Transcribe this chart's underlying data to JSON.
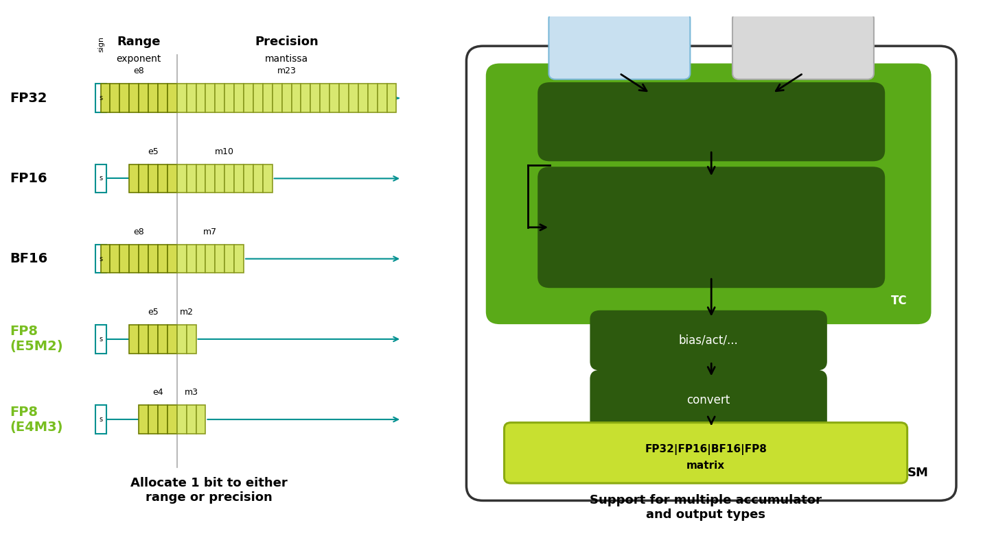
{
  "left_title": "Allocate 1 bit to either\nrange or precision",
  "right_title": "Support for multiple accumulator\nand output types",
  "formats": [
    {
      "name": "FP32",
      "color": "black",
      "sign": 1,
      "exponent": 8,
      "mantissa": 23,
      "exponent_label": "e8",
      "mantissa_label": "m23"
    },
    {
      "name": "FP16",
      "color": "black",
      "sign": 1,
      "exponent": 5,
      "mantissa": 10,
      "exponent_label": "e5",
      "mantissa_label": "m10"
    },
    {
      "name": "BF16",
      "color": "black",
      "sign": 1,
      "exponent": 8,
      "mantissa": 7,
      "exponent_label": "e8",
      "mantissa_label": "m7"
    },
    {
      "name": "FP8\n(E5M2)",
      "color": "#78be20",
      "sign": 1,
      "exponent": 5,
      "mantissa": 2,
      "exponent_label": "e5",
      "mantissa_label": "m2"
    },
    {
      "name": "FP8\n(E4M3)",
      "color": "#78be20",
      "sign": 1,
      "exponent": 4,
      "mantissa": 3,
      "exponent_label": "e4",
      "mantissa_label": "m3"
    }
  ],
  "bg_color": "#ffffff",
  "sign_edge_color": "#009090",
  "line_color": "#009090",
  "exp_fill_color": "#d4dc50",
  "exp_edge_color": "#6b7a00",
  "man_fill_color": "#d8e870",
  "man_edge_color": "#8a9a20",
  "tc_fill_color": "#5aaa18",
  "dark_green": "#2d5a0e",
  "output_fill": "#c8e030",
  "output_edge": "#8aaa10",
  "fp8_blue_fill": "#c8e0f0",
  "fp8_blue_edge": "#7ab8d8",
  "fp8_gray_fill": "#d8d8d8",
  "fp8_gray_edge": "#aaaaaa",
  "sm_edge": "#333333"
}
